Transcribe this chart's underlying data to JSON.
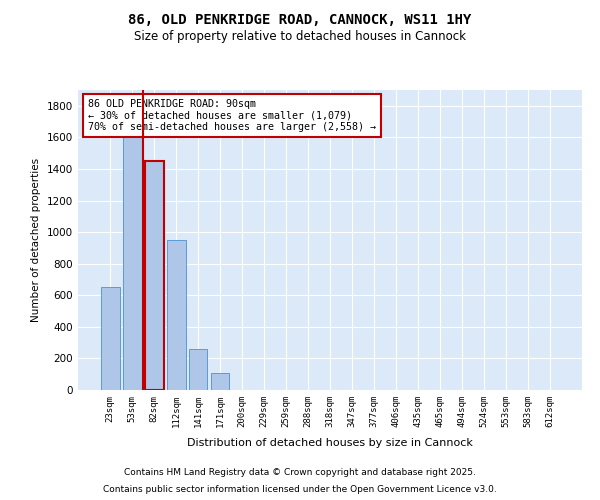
{
  "title": "86, OLD PENKRIDGE ROAD, CANNOCK, WS11 1HY",
  "subtitle": "Size of property relative to detached houses in Cannock",
  "xlabel": "Distribution of detached houses by size in Cannock",
  "ylabel": "Number of detached properties",
  "categories": [
    "23sqm",
    "53sqm",
    "82sqm",
    "112sqm",
    "141sqm",
    "171sqm",
    "200sqm",
    "229sqm",
    "259sqm",
    "288sqm",
    "318sqm",
    "347sqm",
    "377sqm",
    "406sqm",
    "435sqm",
    "465sqm",
    "494sqm",
    "524sqm",
    "553sqm",
    "583sqm",
    "612sqm"
  ],
  "values": [
    650,
    1650,
    1450,
    950,
    260,
    105,
    0,
    0,
    0,
    0,
    0,
    0,
    0,
    0,
    0,
    0,
    0,
    0,
    0,
    0,
    0
  ],
  "bar_color": "#aec6e8",
  "bar_edge_color": "#5b9bd5",
  "highlight_bar_index": 2,
  "highlight_line_color": "#c00000",
  "annotation_text": "86 OLD PENKRIDGE ROAD: 90sqm\n← 30% of detached houses are smaller (1,079)\n70% of semi-detached houses are larger (2,558) →",
  "annotation_box_color": "#ffffff",
  "annotation_box_edge_color": "#c00000",
  "ylim": [
    0,
    1900
  ],
  "yticks": [
    0,
    200,
    400,
    600,
    800,
    1000,
    1200,
    1400,
    1600,
    1800
  ],
  "background_color": "#dce9f8",
  "grid_color": "#ffffff",
  "footer_line1": "Contains HM Land Registry data © Crown copyright and database right 2025.",
  "footer_line2": "Contains public sector information licensed under the Open Government Licence v3.0."
}
